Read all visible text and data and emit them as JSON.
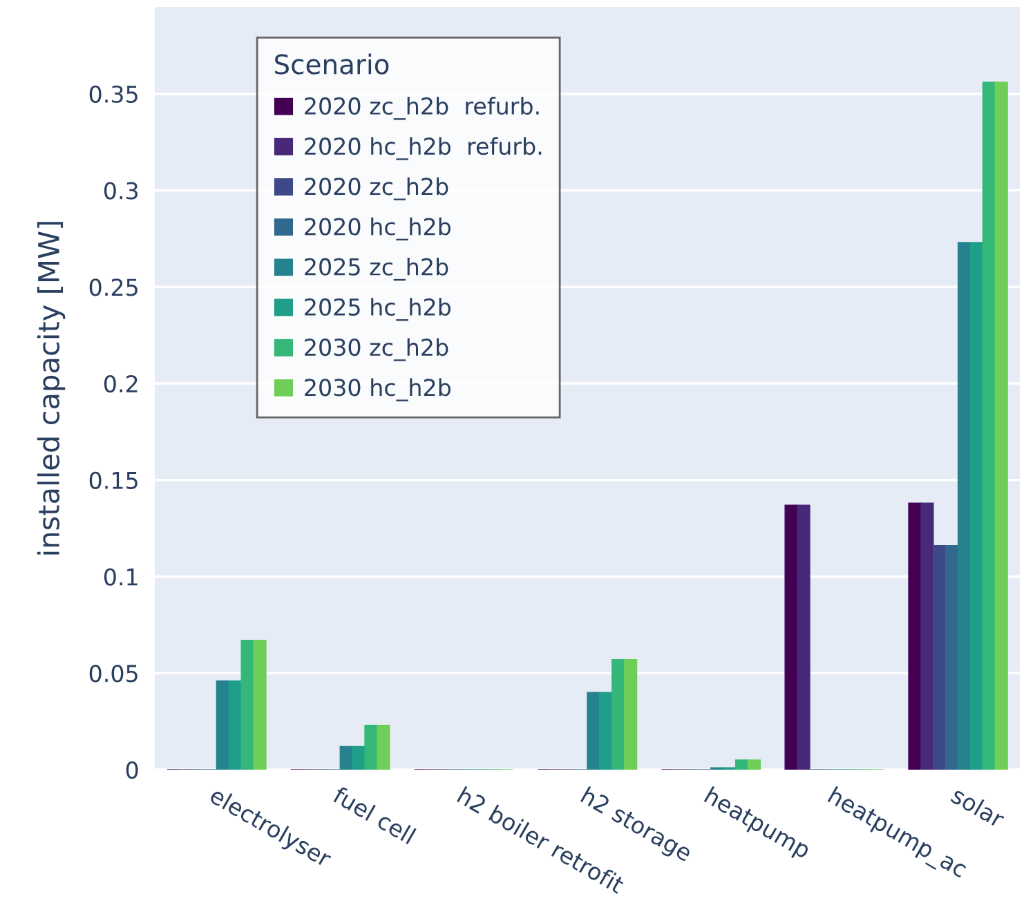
{
  "chart_data": {
    "type": "bar",
    "ylabel": "installed capacity [MW]",
    "legend_title": "Scenario",
    "categories": [
      "electrolyser",
      "fuel cell",
      "h2 boiler retrofit",
      "h2 storage",
      "heatpump",
      "heatpump_ac",
      "solar"
    ],
    "series": [
      {
        "name": "2020 zc_h2b  refurb.",
        "color": "#440154",
        "values": [
          0,
          0,
          0,
          0,
          0,
          0.137,
          0.138
        ]
      },
      {
        "name": "2020 hc_h2b  refurb.",
        "color": "#482878",
        "values": [
          0,
          0,
          0,
          0,
          0,
          0.137,
          0.138
        ]
      },
      {
        "name": "2020 zc_h2b",
        "color": "#3e4989",
        "values": [
          0,
          0,
          0,
          0,
          0,
          0,
          0.116
        ]
      },
      {
        "name": "2020 hc_h2b",
        "color": "#31688e",
        "values": [
          0,
          0,
          0,
          0,
          0,
          0,
          0.116
        ]
      },
      {
        "name": "2025 zc_h2b",
        "color": "#26828e",
        "values": [
          0.046,
          0.012,
          0,
          0.04,
          0.001,
          0,
          0.273
        ]
      },
      {
        "name": "2025 hc_h2b",
        "color": "#1f9e89",
        "values": [
          0.046,
          0.012,
          0,
          0.04,
          0.001,
          0,
          0.273
        ]
      },
      {
        "name": "2030 zc_h2b",
        "color": "#35b779",
        "values": [
          0.067,
          0.023,
          0,
          0.057,
          0.005,
          0,
          0.356
        ]
      },
      {
        "name": "2030 hc_h2b",
        "color": "#6ece58",
        "values": [
          0.067,
          0.023,
          0,
          0.057,
          0.005,
          0,
          0.356
        ]
      }
    ],
    "ylim": [
      0,
      0.395
    ],
    "yticks": [
      {
        "value": 0,
        "label": "0"
      },
      0.05,
      0.1,
      0.15,
      0.2,
      0.25,
      0.3,
      0.35
    ],
    "grid": "y",
    "legend": "top left"
  }
}
